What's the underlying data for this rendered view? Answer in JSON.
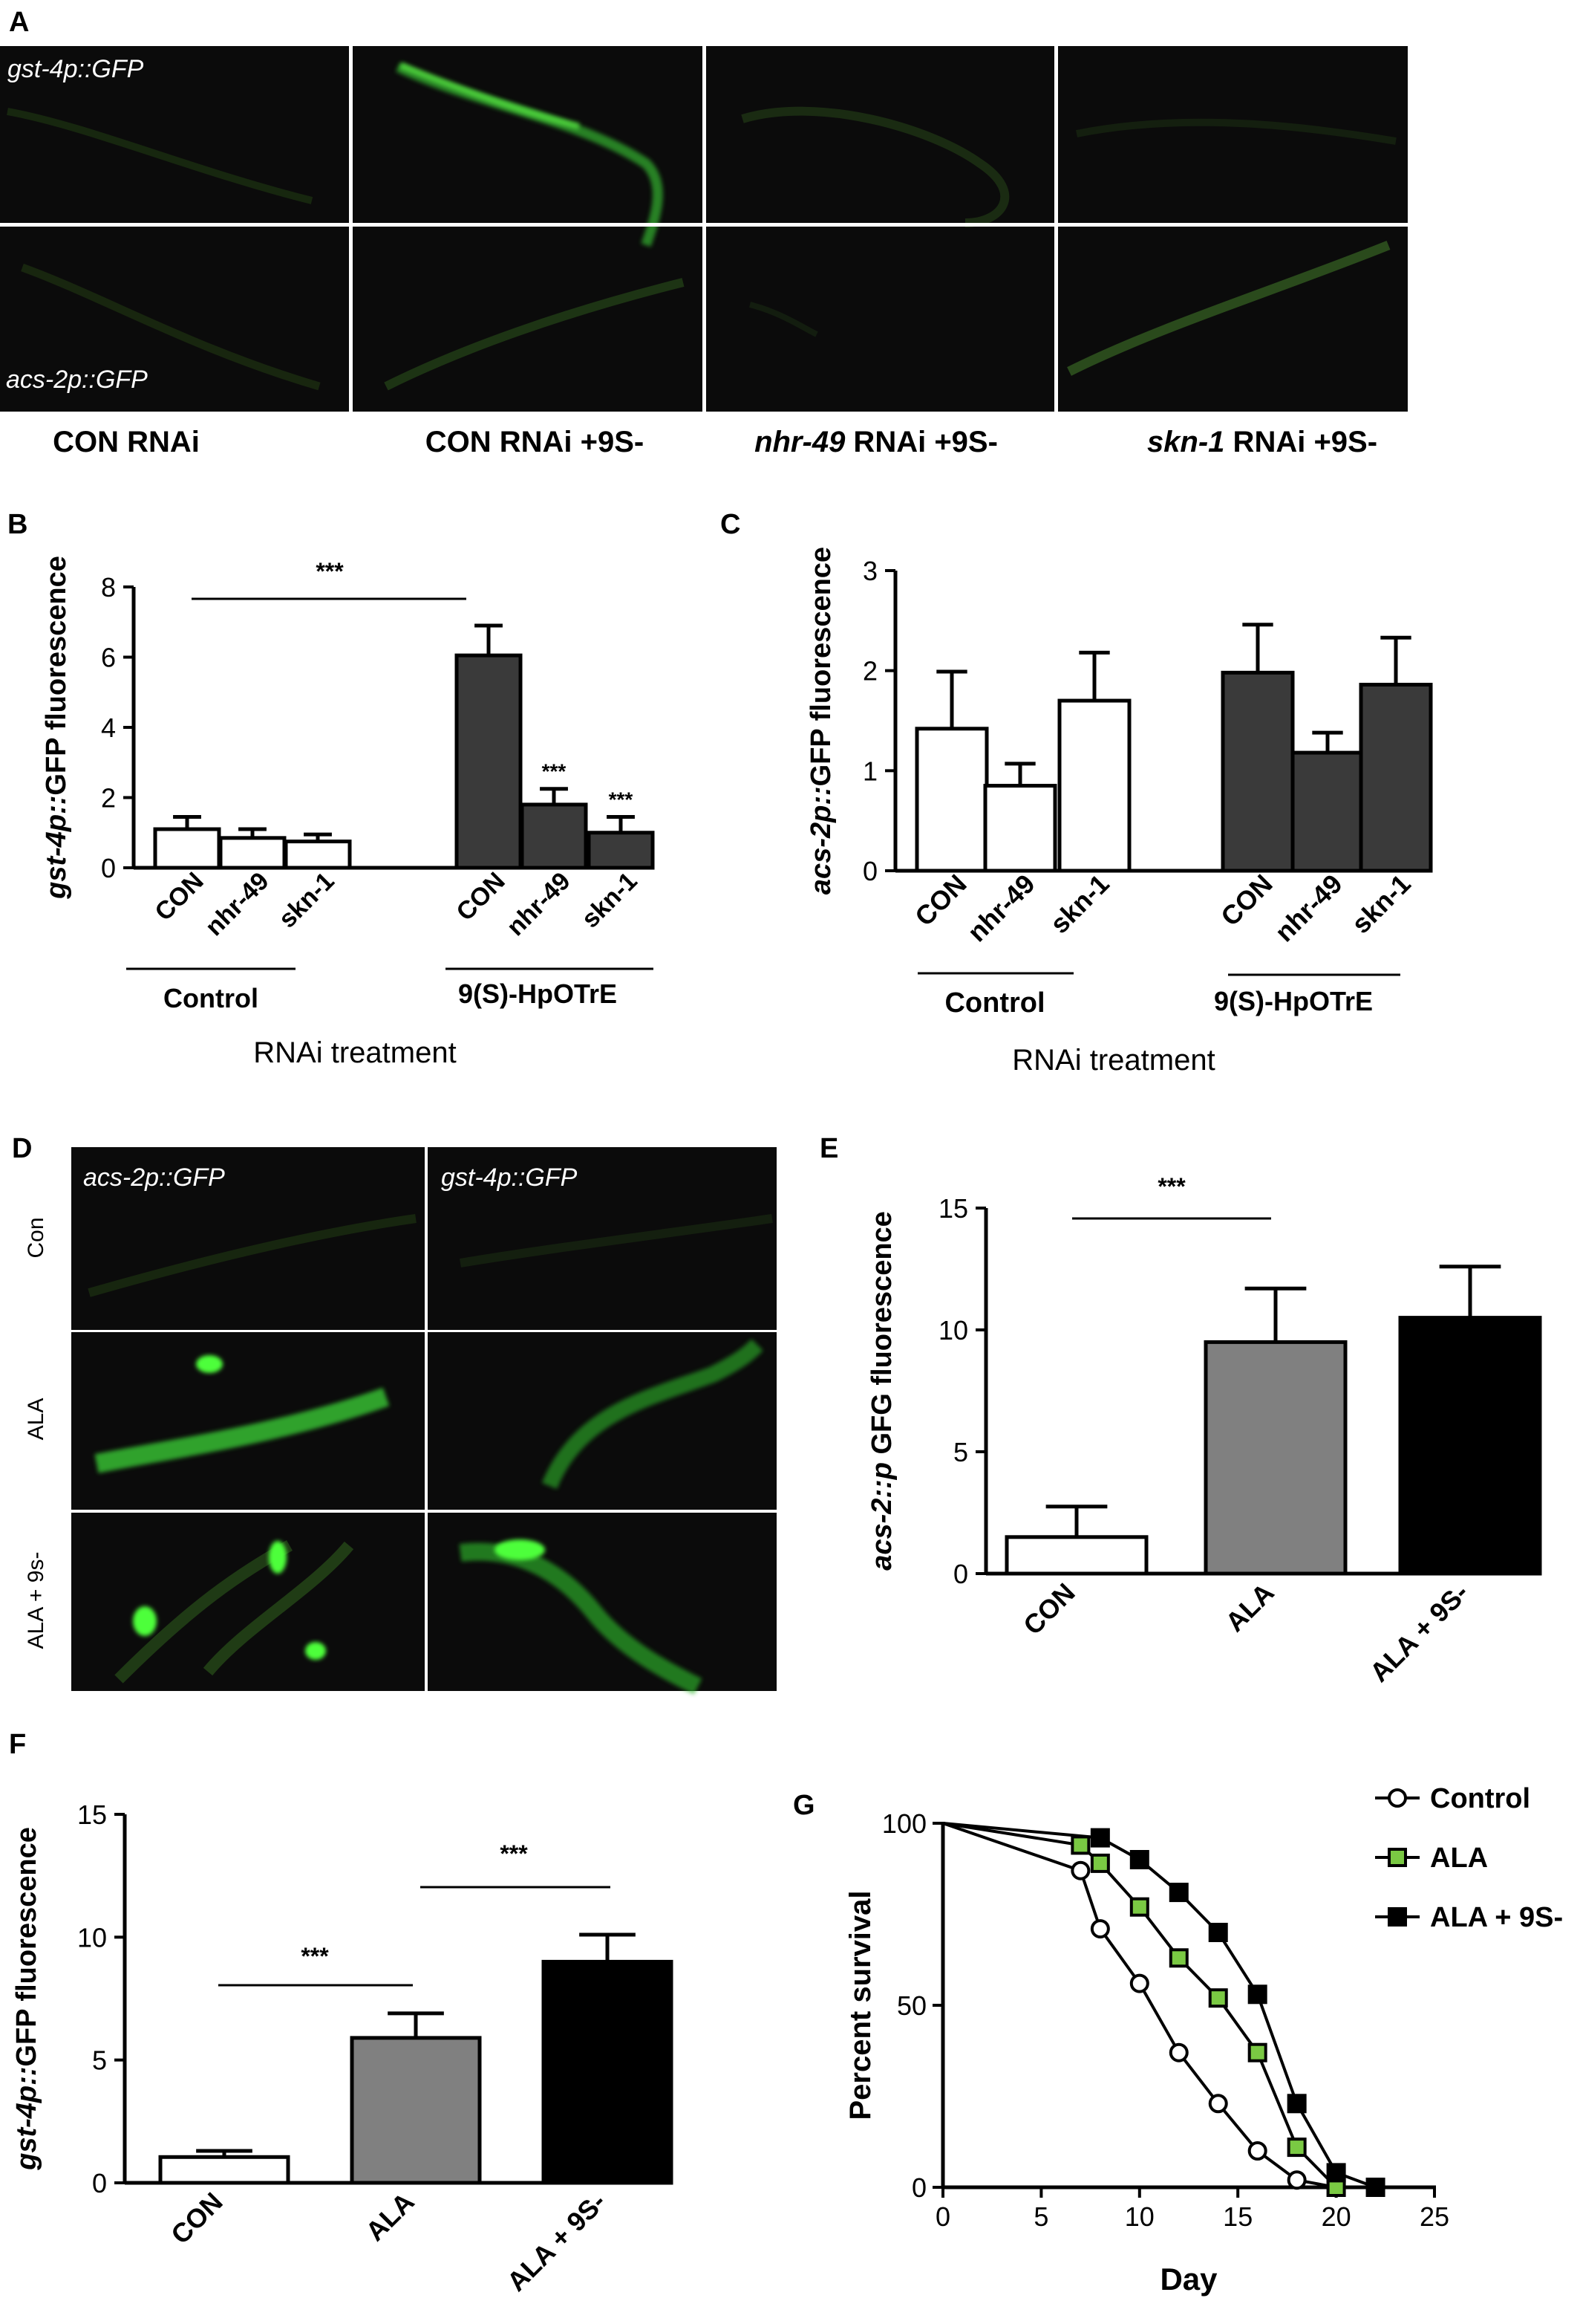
{
  "panel_letters": {
    "A": "A",
    "B": "B",
    "C": "C",
    "D": "D",
    "E": "E",
    "F": "F",
    "G": "G"
  },
  "panel_a": {
    "image_labels": {
      "top": "gst-4p::GFP",
      "bottom": "acs-2p::GFP"
    },
    "column_labels": {
      "c1": "CON RNAi",
      "c2": "CON RNAi +9S-",
      "c3_gene": "nhr-49",
      "c3_rest": " RNAi +9S-",
      "c4_gene": "skn-1",
      "c4_rest": " RNAi +9S-"
    },
    "colors": {
      "background": "#0b0b0b",
      "gfp": "#3fe23a"
    }
  },
  "panel_d": {
    "column_labels": {
      "left": "acs-2p::GFP",
      "right": "gst-4p::GFP"
    },
    "row_labels": {
      "r1": "Con",
      "r2": "ALA",
      "r3": "ALA + 9s-"
    }
  },
  "chart_data": [
    {
      "panel": "B",
      "type": "bar",
      "ylabel_italic": "gst-4p::",
      "ylabel_rest": "GFP fluorescence",
      "xlabel": "RNAi treatment",
      "ylim": [
        0,
        8
      ],
      "yticks": [
        "0",
        "2",
        "4",
        "6",
        "8"
      ],
      "categories": [
        "CON",
        "nhr-49",
        "skn-1",
        "CON",
        "nhr-49",
        "skn-1"
      ],
      "groups": [
        "Control",
        "9(S)-HpOTrE"
      ],
      "values": [
        1.1,
        0.85,
        0.75,
        6.05,
        1.8,
        1.0
      ],
      "errors": [
        0.35,
        0.25,
        0.2,
        0.85,
        0.45,
        0.45
      ],
      "colors": [
        "#ffffff",
        "#ffffff",
        "#ffffff",
        "#3a3a3a",
        "#3a3a3a",
        "#3a3a3a"
      ],
      "annotations": {
        "star_bracket": "***",
        "star_b5": "***",
        "star_b6": "***"
      }
    },
    {
      "panel": "C",
      "type": "bar",
      "ylabel_italic": "acs-2p::",
      "ylabel_rest": "GFP fluorescence",
      "xlabel": "RNAi treatment",
      "ylim": [
        0,
        3
      ],
      "yticks": [
        "0",
        "1",
        "2",
        "3"
      ],
      "categories": [
        "CON",
        "nhr-49",
        "skn-1",
        "CON",
        "nhr-49",
        "skn-1"
      ],
      "groups": [
        "Control",
        "9(S)-HpOTrE"
      ],
      "values": [
        1.42,
        0.85,
        1.7,
        1.98,
        1.18,
        1.86
      ],
      "errors": [
        0.57,
        0.22,
        0.48,
        0.48,
        0.2,
        0.47
      ],
      "colors": [
        "#ffffff",
        "#ffffff",
        "#ffffff",
        "#3a3a3a",
        "#3a3a3a",
        "#3a3a3a"
      ]
    },
    {
      "panel": "E",
      "type": "bar",
      "ylabel_italic": "acs-2::p",
      "ylabel_rest": " GFG fluorescence",
      "ylim": [
        0,
        15
      ],
      "yticks": [
        "0",
        "5",
        "10",
        "15"
      ],
      "categories": [
        "CON",
        "ALA",
        "ALA + 9S-"
      ],
      "values": [
        1.5,
        9.5,
        10.5
      ],
      "errors": [
        1.25,
        2.2,
        2.1
      ],
      "colors": [
        "#ffffff",
        "#808080",
        "#000000"
      ],
      "annotations": {
        "star_bracket": "***"
      }
    },
    {
      "panel": "F",
      "type": "bar",
      "ylabel_italic": "gst-4p::",
      "ylabel_rest": "GFP fluorescence",
      "ylim": [
        0,
        15
      ],
      "yticks": [
        "0",
        "5",
        "10",
        "15"
      ],
      "categories": [
        "CON",
        "ALA",
        "ALA + 9S-"
      ],
      "values": [
        1.05,
        5.9,
        9.0
      ],
      "errors": [
        0.25,
        1.0,
        1.1
      ],
      "colors": [
        "#ffffff",
        "#808080",
        "#000000"
      ],
      "annotations": {
        "star_left": "***",
        "star_right": "***"
      }
    },
    {
      "panel": "G",
      "type": "line",
      "xlabel": "Day",
      "ylabel": "Percent survival",
      "xlim": [
        0,
        25
      ],
      "ylim": [
        0,
        100
      ],
      "xticks": [
        "0",
        "5",
        "10",
        "15",
        "20",
        "25"
      ],
      "yticks": [
        "0",
        "50",
        "100"
      ],
      "series": [
        {
          "name": "Control",
          "marker": "circle",
          "color": "#ffffff",
          "x": [
            0,
            7,
            8,
            10,
            12,
            14,
            16,
            18,
            20
          ],
          "y": [
            100,
            87,
            71,
            56,
            37,
            23,
            10,
            2,
            0
          ]
        },
        {
          "name": "ALA",
          "marker": "square",
          "color": "#7ac943",
          "x": [
            0,
            7,
            8,
            10,
            12,
            14,
            16,
            18,
            20
          ],
          "y": [
            100,
            94,
            89,
            77,
            63,
            52,
            37,
            11,
            0
          ]
        },
        {
          "name": "ALA + 9S-",
          "marker": "square",
          "color": "#000000",
          "x": [
            0,
            8,
            10,
            12,
            14,
            16,
            18,
            20,
            22
          ],
          "y": [
            100,
            96,
            90,
            81,
            70,
            53,
            23,
            4,
            0
          ]
        }
      ]
    }
  ]
}
